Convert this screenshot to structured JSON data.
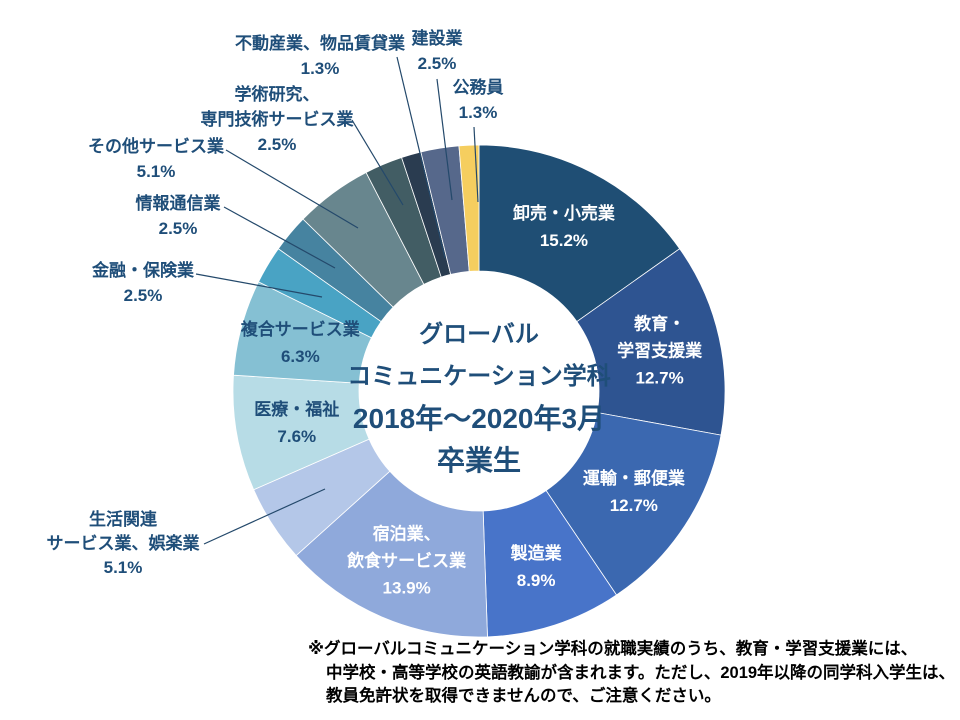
{
  "chart_data": {
    "type": "pie",
    "subtype": "donut",
    "title": "グローバル コミュニケーション学科 2018年〜2020年3月 卒業生",
    "title_lines": [
      "グローバル",
      "コミュニケーション学科",
      "2018年〜2020年3月",
      "卒業生"
    ],
    "legend_position": "none",
    "units": "%",
    "slices": [
      {
        "label": "卸売・小売業",
        "label_lines": [
          "卸売・小売業"
        ],
        "value": 15.2,
        "pct": "15.2%",
        "color": "#1F4E74",
        "placement": "inside",
        "text_color": "#FFFFFF"
      },
      {
        "label": "教育・学習支援業",
        "label_lines": [
          "教育・",
          "学習支援業"
        ],
        "value": 12.7,
        "pct": "12.7%",
        "color": "#2E5491",
        "placement": "inside",
        "text_color": "#FFFFFF"
      },
      {
        "label": "運輸・郵便業",
        "label_lines": [
          "運輸・郵便業"
        ],
        "value": 12.7,
        "pct": "12.7%",
        "color": "#3B68B0",
        "placement": "inside",
        "text_color": "#FFFFFF"
      },
      {
        "label": "製造業",
        "label_lines": [
          "製造業"
        ],
        "value": 8.9,
        "pct": "8.9%",
        "color": "#4874C9",
        "placement": "inside",
        "text_color": "#FFFFFF"
      },
      {
        "label": "宿泊業、飲食サービス業",
        "label_lines": [
          "宿泊業、",
          "飲食サービス業"
        ],
        "value": 13.9,
        "pct": "13.9%",
        "color": "#8FA9DB",
        "placement": "inside",
        "text_color": "#FFFFFF"
      },
      {
        "label": "生活関連サービス業、娯楽業",
        "label_lines": [
          "生活関連",
          "サービス業、娯楽業"
        ],
        "value": 5.1,
        "pct": "5.1%",
        "color": "#B4C7E8",
        "placement": "outside",
        "text_color": "#1F4E79"
      },
      {
        "label": "医療・福祉",
        "label_lines": [
          "医療・福祉"
        ],
        "value": 7.6,
        "pct": "7.6%",
        "color": "#B7DCE6",
        "placement": "inside",
        "text_color": "#1F4E79"
      },
      {
        "label": "複合サービス業",
        "label_lines": [
          "複合サービス業"
        ],
        "value": 6.3,
        "pct": "6.3%",
        "color": "#85C0D3",
        "placement": "inside",
        "text_color": "#1F4E79"
      },
      {
        "label": "金融・保険業",
        "label_lines": [
          "金融・保険業"
        ],
        "value": 2.5,
        "pct": "2.5%",
        "color": "#49A3C4",
        "placement": "outside",
        "text_color": "#1F4E79"
      },
      {
        "label": "情報通信業",
        "label_lines": [
          "情報通信業"
        ],
        "value": 2.5,
        "pct": "2.5%",
        "color": "#4683A0",
        "placement": "outside",
        "text_color": "#1F4E79"
      },
      {
        "label": "その他サービス業",
        "label_lines": [
          "その他サービス業"
        ],
        "value": 5.1,
        "pct": "5.1%",
        "color": "#68868E",
        "placement": "outside",
        "text_color": "#1F4E79"
      },
      {
        "label": "学術研究、専門技術サービス業",
        "label_lines": [
          "学術研究、",
          "専門技術サービス業"
        ],
        "value": 2.5,
        "pct": "2.5%",
        "color": "#425D64",
        "placement": "outside",
        "text_color": "#1F4E79"
      },
      {
        "label": "不動産業、物品賃貸業",
        "label_lines": [
          "不動産業、物品賃貸業"
        ],
        "value": 1.3,
        "pct": "1.3%",
        "color": "#2A3C50",
        "placement": "outside",
        "text_color": "#1F4E79"
      },
      {
        "label": "建設業",
        "label_lines": [
          "建設業"
        ],
        "value": 2.5,
        "pct": "2.5%",
        "color": "#56688B",
        "placement": "outside",
        "text_color": "#1F4E79"
      },
      {
        "label": "公務員",
        "label_lines": [
          "公務員"
        ],
        "value": 1.3,
        "pct": "1.3%",
        "color": "#F5CE5F",
        "placement": "outside",
        "text_color": "#1F4E79"
      }
    ],
    "note_lines": [
      "※グローバルコミュニケーション学科の就職実績のうち、教育・学習支援業には、",
      "中学校・高等学校の英語教諭が含まれます。ただし、2019年以降の同学科入学生は、",
      "教員免許状を取得できませんので、ご注意ください。"
    ],
    "colors": {
      "label_text": "#1F4E79",
      "inside_label_text": "#FFFFFF",
      "note_text": "#000000",
      "background": "#FFFFFF"
    }
  }
}
